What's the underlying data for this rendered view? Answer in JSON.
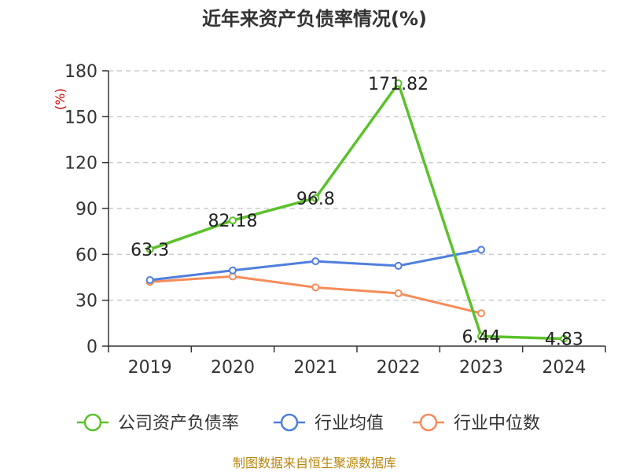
{
  "title": "近年来资产负债率情况(%)",
  "source": "制图数据来自恒生聚源数据库",
  "chart_data": {
    "type": "line",
    "title": "近年来资产负债率情况(%)",
    "ylabel": "(%)",
    "ylim": [
      0,
      180
    ],
    "yticks": [
      "0",
      "30",
      "60",
      "90",
      "120",
      "150",
      "180"
    ],
    "categories": [
      "2019",
      "2020",
      "2021",
      "2022",
      "2023",
      "2024"
    ],
    "grid": true,
    "legend_position": "bottom",
    "series": [
      {
        "name": "公司资产负债率",
        "color": "#5cc12b",
        "values": [
          63.3,
          82.18,
          96.8,
          171.82,
          6.44,
          4.83
        ],
        "labels": [
          "63.3",
          "82.18",
          "96.8",
          "171.82",
          "6.44",
          "4.83"
        ]
      },
      {
        "name": "行业均值",
        "color": "#4f7fdd",
        "values": [
          43.2,
          49.5,
          55.5,
          52.5,
          63.0,
          null
        ]
      },
      {
        "name": "行业中位数",
        "color": "#f68c5a",
        "values": [
          42.0,
          45.6,
          38.4,
          34.5,
          21.5,
          null
        ]
      }
    ]
  }
}
